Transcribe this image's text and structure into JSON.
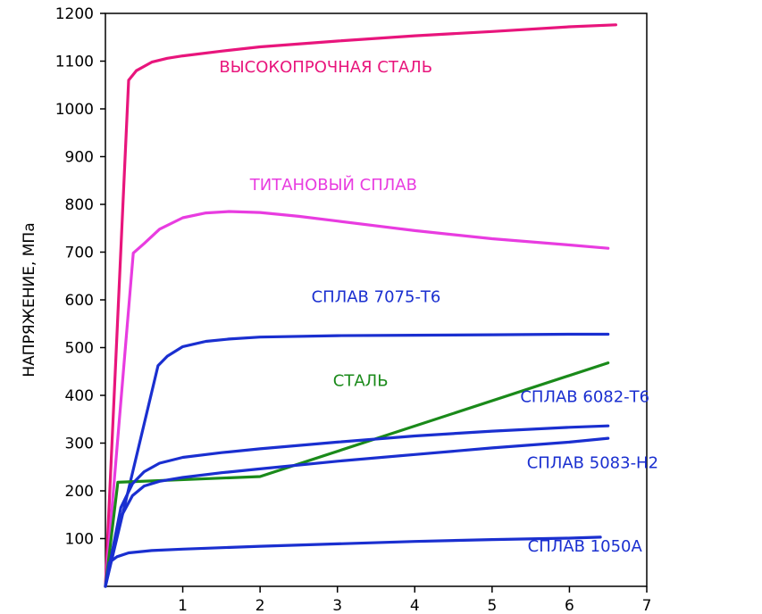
{
  "chart_data": {
    "type": "line",
    "title": "",
    "xlabel": "",
    "ylabel": "НАПРЯЖЕНИЕ, МПа",
    "xlim": [
      0,
      7
    ],
    "ylim": [
      0,
      1200
    ],
    "grid": false,
    "x_ticks": [
      1,
      2,
      3,
      4,
      5,
      6,
      7
    ],
    "y_ticks": [
      100,
      200,
      300,
      400,
      500,
      600,
      700,
      800,
      900,
      1000,
      1100,
      1200
    ],
    "series": [
      {
        "name": "ВЫСОКОПРОЧНАЯ СТАЛЬ",
        "color": "#e8157c",
        "points": [
          [
            0,
            0
          ],
          [
            0.3,
            1060
          ],
          [
            0.4,
            1080
          ],
          [
            0.6,
            1098
          ],
          [
            0.8,
            1106
          ],
          [
            1.0,
            1111
          ],
          [
            1.5,
            1121
          ],
          [
            2.0,
            1130
          ],
          [
            3.0,
            1142
          ],
          [
            4.0,
            1153
          ],
          [
            5.0,
            1162
          ],
          [
            6.0,
            1172
          ],
          [
            6.6,
            1176
          ]
        ]
      },
      {
        "name": "ТИТАНОВЫЙ СПЛАВ",
        "color": "#e83ce0",
        "points": [
          [
            0,
            0
          ],
          [
            0.36,
            698
          ],
          [
            0.5,
            718
          ],
          [
            0.7,
            748
          ],
          [
            1.0,
            772
          ],
          [
            1.3,
            782
          ],
          [
            1.6,
            785
          ],
          [
            2.0,
            783
          ],
          [
            2.5,
            775
          ],
          [
            3.0,
            765
          ],
          [
            4.0,
            745
          ],
          [
            5.0,
            728
          ],
          [
            6.0,
            715
          ],
          [
            6.5,
            708
          ]
        ]
      },
      {
        "name": "СПЛАВ 7075-Т6",
        "color": "#1a2fd0",
        "points": [
          [
            0,
            0
          ],
          [
            0.68,
            462
          ],
          [
            0.8,
            482
          ],
          [
            1.0,
            502
          ],
          [
            1.3,
            513
          ],
          [
            1.6,
            518
          ],
          [
            2.0,
            522
          ],
          [
            3.0,
            525
          ],
          [
            4.0,
            526
          ],
          [
            5.0,
            527
          ],
          [
            6.0,
            528
          ],
          [
            6.5,
            528
          ]
        ]
      },
      {
        "name": "СТАЛЬ",
        "color": "#1a8a1a",
        "points": [
          [
            0,
            0
          ],
          [
            0.16,
            218
          ],
          [
            2.0,
            230
          ],
          [
            6.5,
            468
          ]
        ]
      },
      {
        "name": "СПЛАВ 6082-Т6",
        "color": "#1a2fd0",
        "points": [
          [
            0,
            0
          ],
          [
            0.2,
            165
          ],
          [
            0.35,
            215
          ],
          [
            0.5,
            240
          ],
          [
            0.7,
            258
          ],
          [
            1.0,
            270
          ],
          [
            1.5,
            280
          ],
          [
            2.0,
            288
          ],
          [
            3.0,
            302
          ],
          [
            4.0,
            315
          ],
          [
            5.0,
            325
          ],
          [
            6.0,
            333
          ],
          [
            6.5,
            336
          ]
        ]
      },
      {
        "name": "СПЛАВ 5083-Н2",
        "color": "#1a2fd0",
        "points": [
          [
            0,
            0
          ],
          [
            0.2,
            145
          ],
          [
            0.35,
            190
          ],
          [
            0.5,
            210
          ],
          [
            0.7,
            220
          ],
          [
            1.0,
            228
          ],
          [
            1.5,
            238
          ],
          [
            2.0,
            246
          ],
          [
            3.0,
            262
          ],
          [
            4.0,
            276
          ],
          [
            5.0,
            290
          ],
          [
            6.0,
            302
          ],
          [
            6.5,
            310
          ]
        ]
      },
      {
        "name": "СПЛАВ 1050А",
        "color": "#1a2fd0",
        "points": [
          [
            0,
            0
          ],
          [
            0.05,
            50
          ],
          [
            0.15,
            62
          ],
          [
            0.3,
            70
          ],
          [
            0.6,
            75
          ],
          [
            1.0,
            78
          ],
          [
            2.0,
            84
          ],
          [
            3.0,
            89
          ],
          [
            4.0,
            94
          ],
          [
            5.0,
            98
          ],
          [
            6.0,
            101
          ],
          [
            6.4,
            103
          ]
        ]
      }
    ],
    "labels": [
      {
        "text": "ВЫСОКОПРОЧНАЯ СТАЛЬ",
        "x": 2.85,
        "y": 1077,
        "color": "#e8157c"
      },
      {
        "text": "ТИТАНОВЫЙ СПЛАВ",
        "x": 2.95,
        "y": 830,
        "color": "#e83ce0"
      },
      {
        "text": "СПЛАВ 7075-Т6",
        "x": 3.5,
        "y": 595,
        "color": "#1a2fd0"
      },
      {
        "text": "СТАЛЬ",
        "x": 3.3,
        "y": 420,
        "color": "#1a8a1a"
      },
      {
        "text": "СПЛАВ 6082-Т6",
        "x": 6.2,
        "y": 386,
        "color": "#1a2fd0"
      },
      {
        "text": "СПЛАВ 5083-Н2",
        "x": 6.3,
        "y": 248,
        "color": "#1a2fd0"
      },
      {
        "text": "СПЛАВ 1050А",
        "x": 6.2,
        "y": 73,
        "color": "#1a2fd0"
      }
    ]
  }
}
